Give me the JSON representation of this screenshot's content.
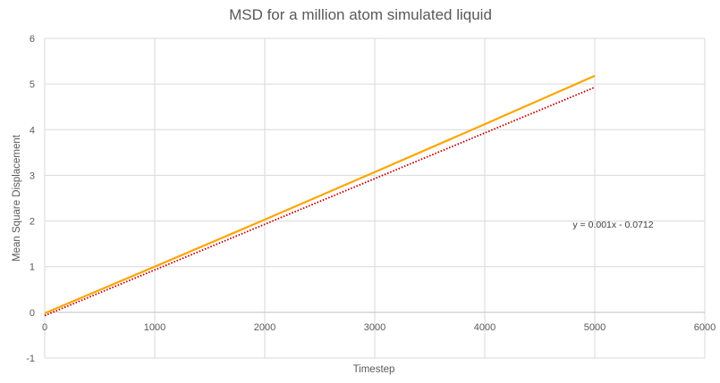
{
  "chart_data": {
    "type": "line",
    "title": "MSD for a million atom simulated liquid",
    "xlabel": "Timestep",
    "ylabel": "Mean Square Displacement",
    "xlim": [
      0,
      6000
    ],
    "ylim": [
      -1,
      6
    ],
    "x_ticks": [
      "0",
      "1000",
      "2000",
      "3000",
      "4000",
      "5000",
      "6000"
    ],
    "y_ticks": [
      "-1",
      "0",
      "1",
      "2",
      "3",
      "4",
      "5",
      "6"
    ],
    "grid": true,
    "series": [
      {
        "x": [
          0,
          1000,
          2000,
          3000,
          4000,
          5000
        ],
        "y": [
          -0.02,
          1.0,
          2.03,
          3.07,
          4.12,
          5.18
        ],
        "color": "#ffa500",
        "style": "solid"
      }
    ],
    "trendline": {
      "slope": 0.001,
      "intercept": -0.0712,
      "x_range": [
        0,
        5000
      ],
      "color": "#c00000",
      "style": "dotted",
      "equation": "y = 0.001x - 0.0712"
    }
  }
}
